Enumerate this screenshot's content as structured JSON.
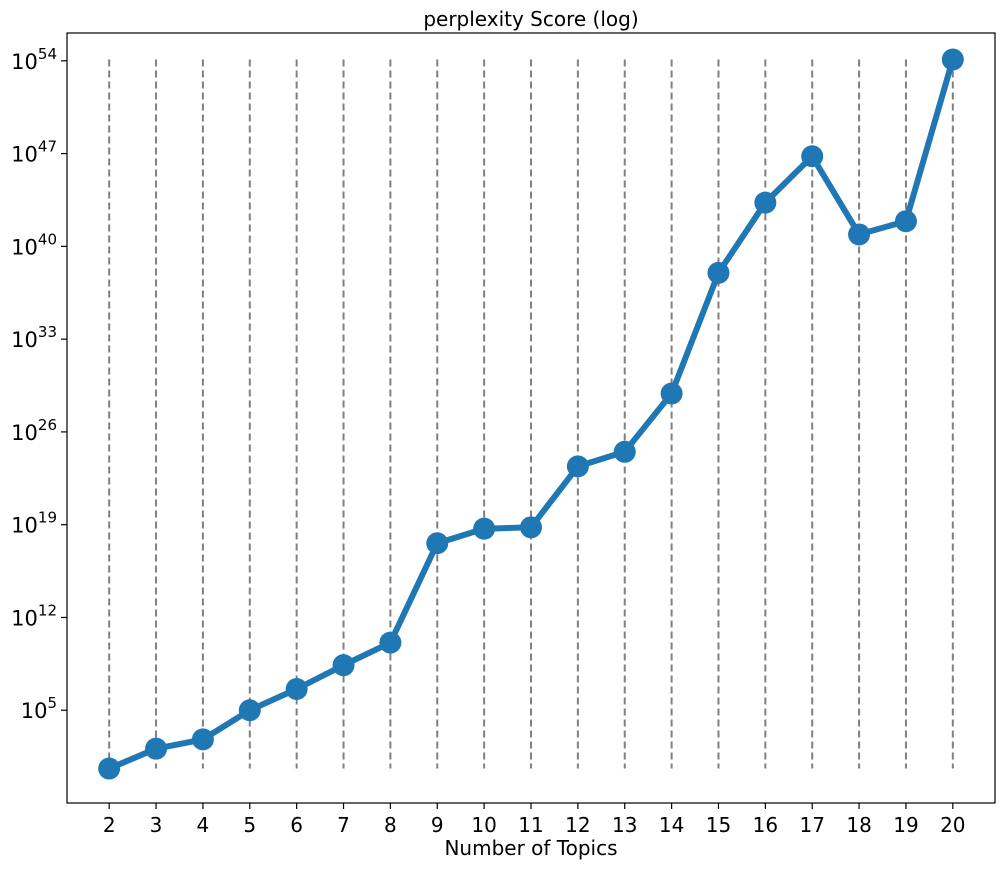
{
  "chart_data": {
    "type": "line",
    "title": "perplexity Score (log)",
    "xlabel": "Number of Topics",
    "ylabel": "",
    "yscale": "log",
    "x": [
      2,
      3,
      4,
      5,
      6,
      7,
      8,
      9,
      10,
      11,
      12,
      13,
      14,
      15,
      16,
      17,
      18,
      19,
      20
    ],
    "series": [
      {
        "name": "",
        "log10_values": [
          0.6,
          2.1,
          2.8,
          5.0,
          6.6,
          8.4,
          10.1,
          17.6,
          18.7,
          18.8,
          23.4,
          24.5,
          28.9,
          38.0,
          43.3,
          46.8,
          40.9,
          41.9,
          54.1
        ]
      }
    ],
    "xlim": [
      1.1,
      20.9
    ],
    "log10_ylim": [
      -2.0,
      56.1
    ],
    "y_tick_exponents": [
      5,
      12,
      19,
      26,
      33,
      40,
      47,
      54
    ],
    "vertical_dashed_lines": true,
    "grid": false,
    "legend": "none",
    "colors": {
      "line": "#1f77b4",
      "dashes": "#808080",
      "axes": "#000000"
    }
  }
}
